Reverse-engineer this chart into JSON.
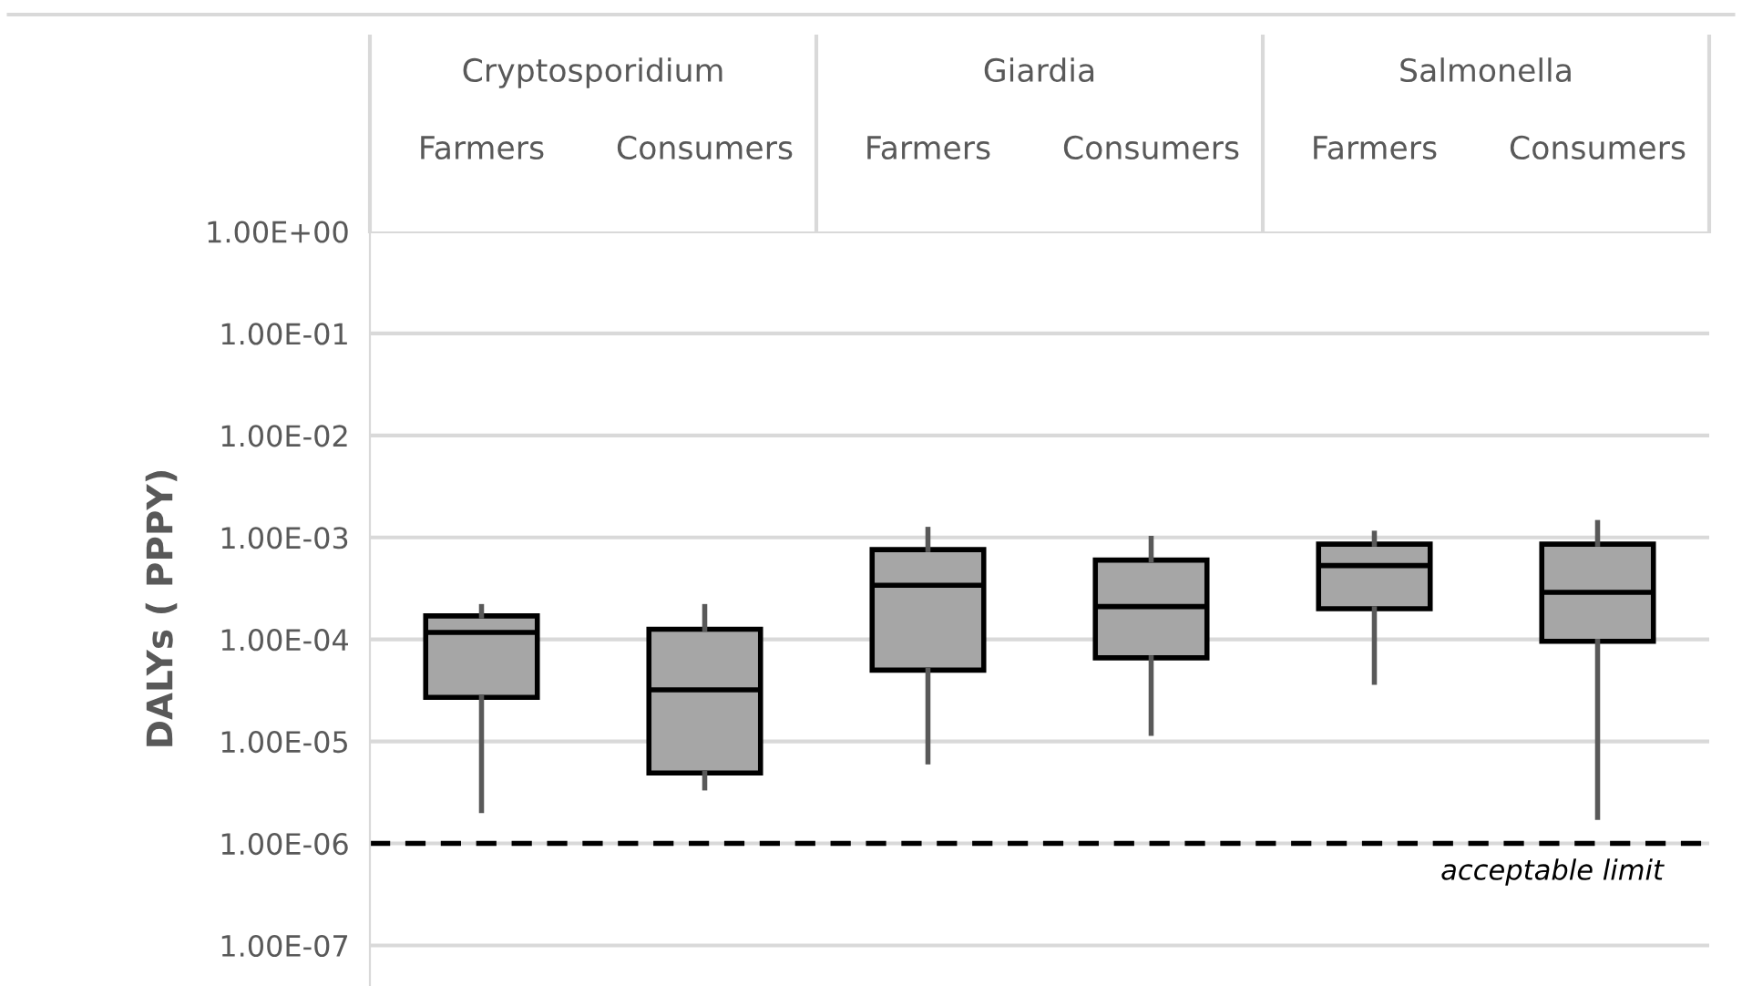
{
  "chart_data": {
    "type": "box",
    "ylabel": "DALYs ( PPPY)",
    "categories": [
      "Farmers",
      "Consumers",
      "Farmers",
      "Consumers",
      "Farmers",
      "Consumers"
    ],
    "annotations": [
      "Cryptosporidium",
      "Giardia",
      "Salmonella"
    ],
    "boxes": [
      {
        "low": 2.1e-06,
        "q1": 2.7e-05,
        "median": 0.000117,
        "q3": 0.00017,
        "high": 0.00021
      },
      {
        "low": 3.5e-06,
        "q1": 4.9e-06,
        "median": 3.2e-05,
        "q3": 0.000126,
        "high": 0.00021
      },
      {
        "low": 6.3e-06,
        "q1": 5e-05,
        "median": 0.00034,
        "q3": 0.00076,
        "high": 0.0012
      },
      {
        "low": 1.2e-05,
        "q1": 6.6e-05,
        "median": 0.00021,
        "q3": 0.0006,
        "high": 0.00098
      },
      {
        "low": 3.8e-05,
        "q1": 0.0002,
        "median": 0.00053,
        "q3": 0.00086,
        "high": 0.0011
      },
      {
        "low": 1.8e-06,
        "q1": 9.6e-05,
        "median": 0.00029,
        "q3": 0.00086,
        "high": 0.0014
      }
    ],
    "color": "#a6a6a6",
    "log": "y",
    "ylim": [
      4e-08,
      1
    ],
    "yticks": [
      {
        "value": 1e-07,
        "label": "1.00E-07"
      },
      {
        "value": 1e-06,
        "label": "1.00E-06"
      },
      {
        "value": 1e-05,
        "label": "1.00E-05"
      },
      {
        "value": 0.0001,
        "label": "1.00E-04"
      },
      {
        "value": 0.001,
        "label": "1.00E-03"
      },
      {
        "value": 0.01,
        "label": "1.00E-02"
      },
      {
        "value": 0.1,
        "label": "1.00E-01"
      },
      {
        "value": 1,
        "label": "1.00E+00"
      }
    ],
    "ref_lines": [
      {
        "axis": "y",
        "value": 1e-06,
        "label": "acceptable limit",
        "color": "#000000",
        "line_style": "dashed"
      }
    ],
    "grid": "y"
  }
}
